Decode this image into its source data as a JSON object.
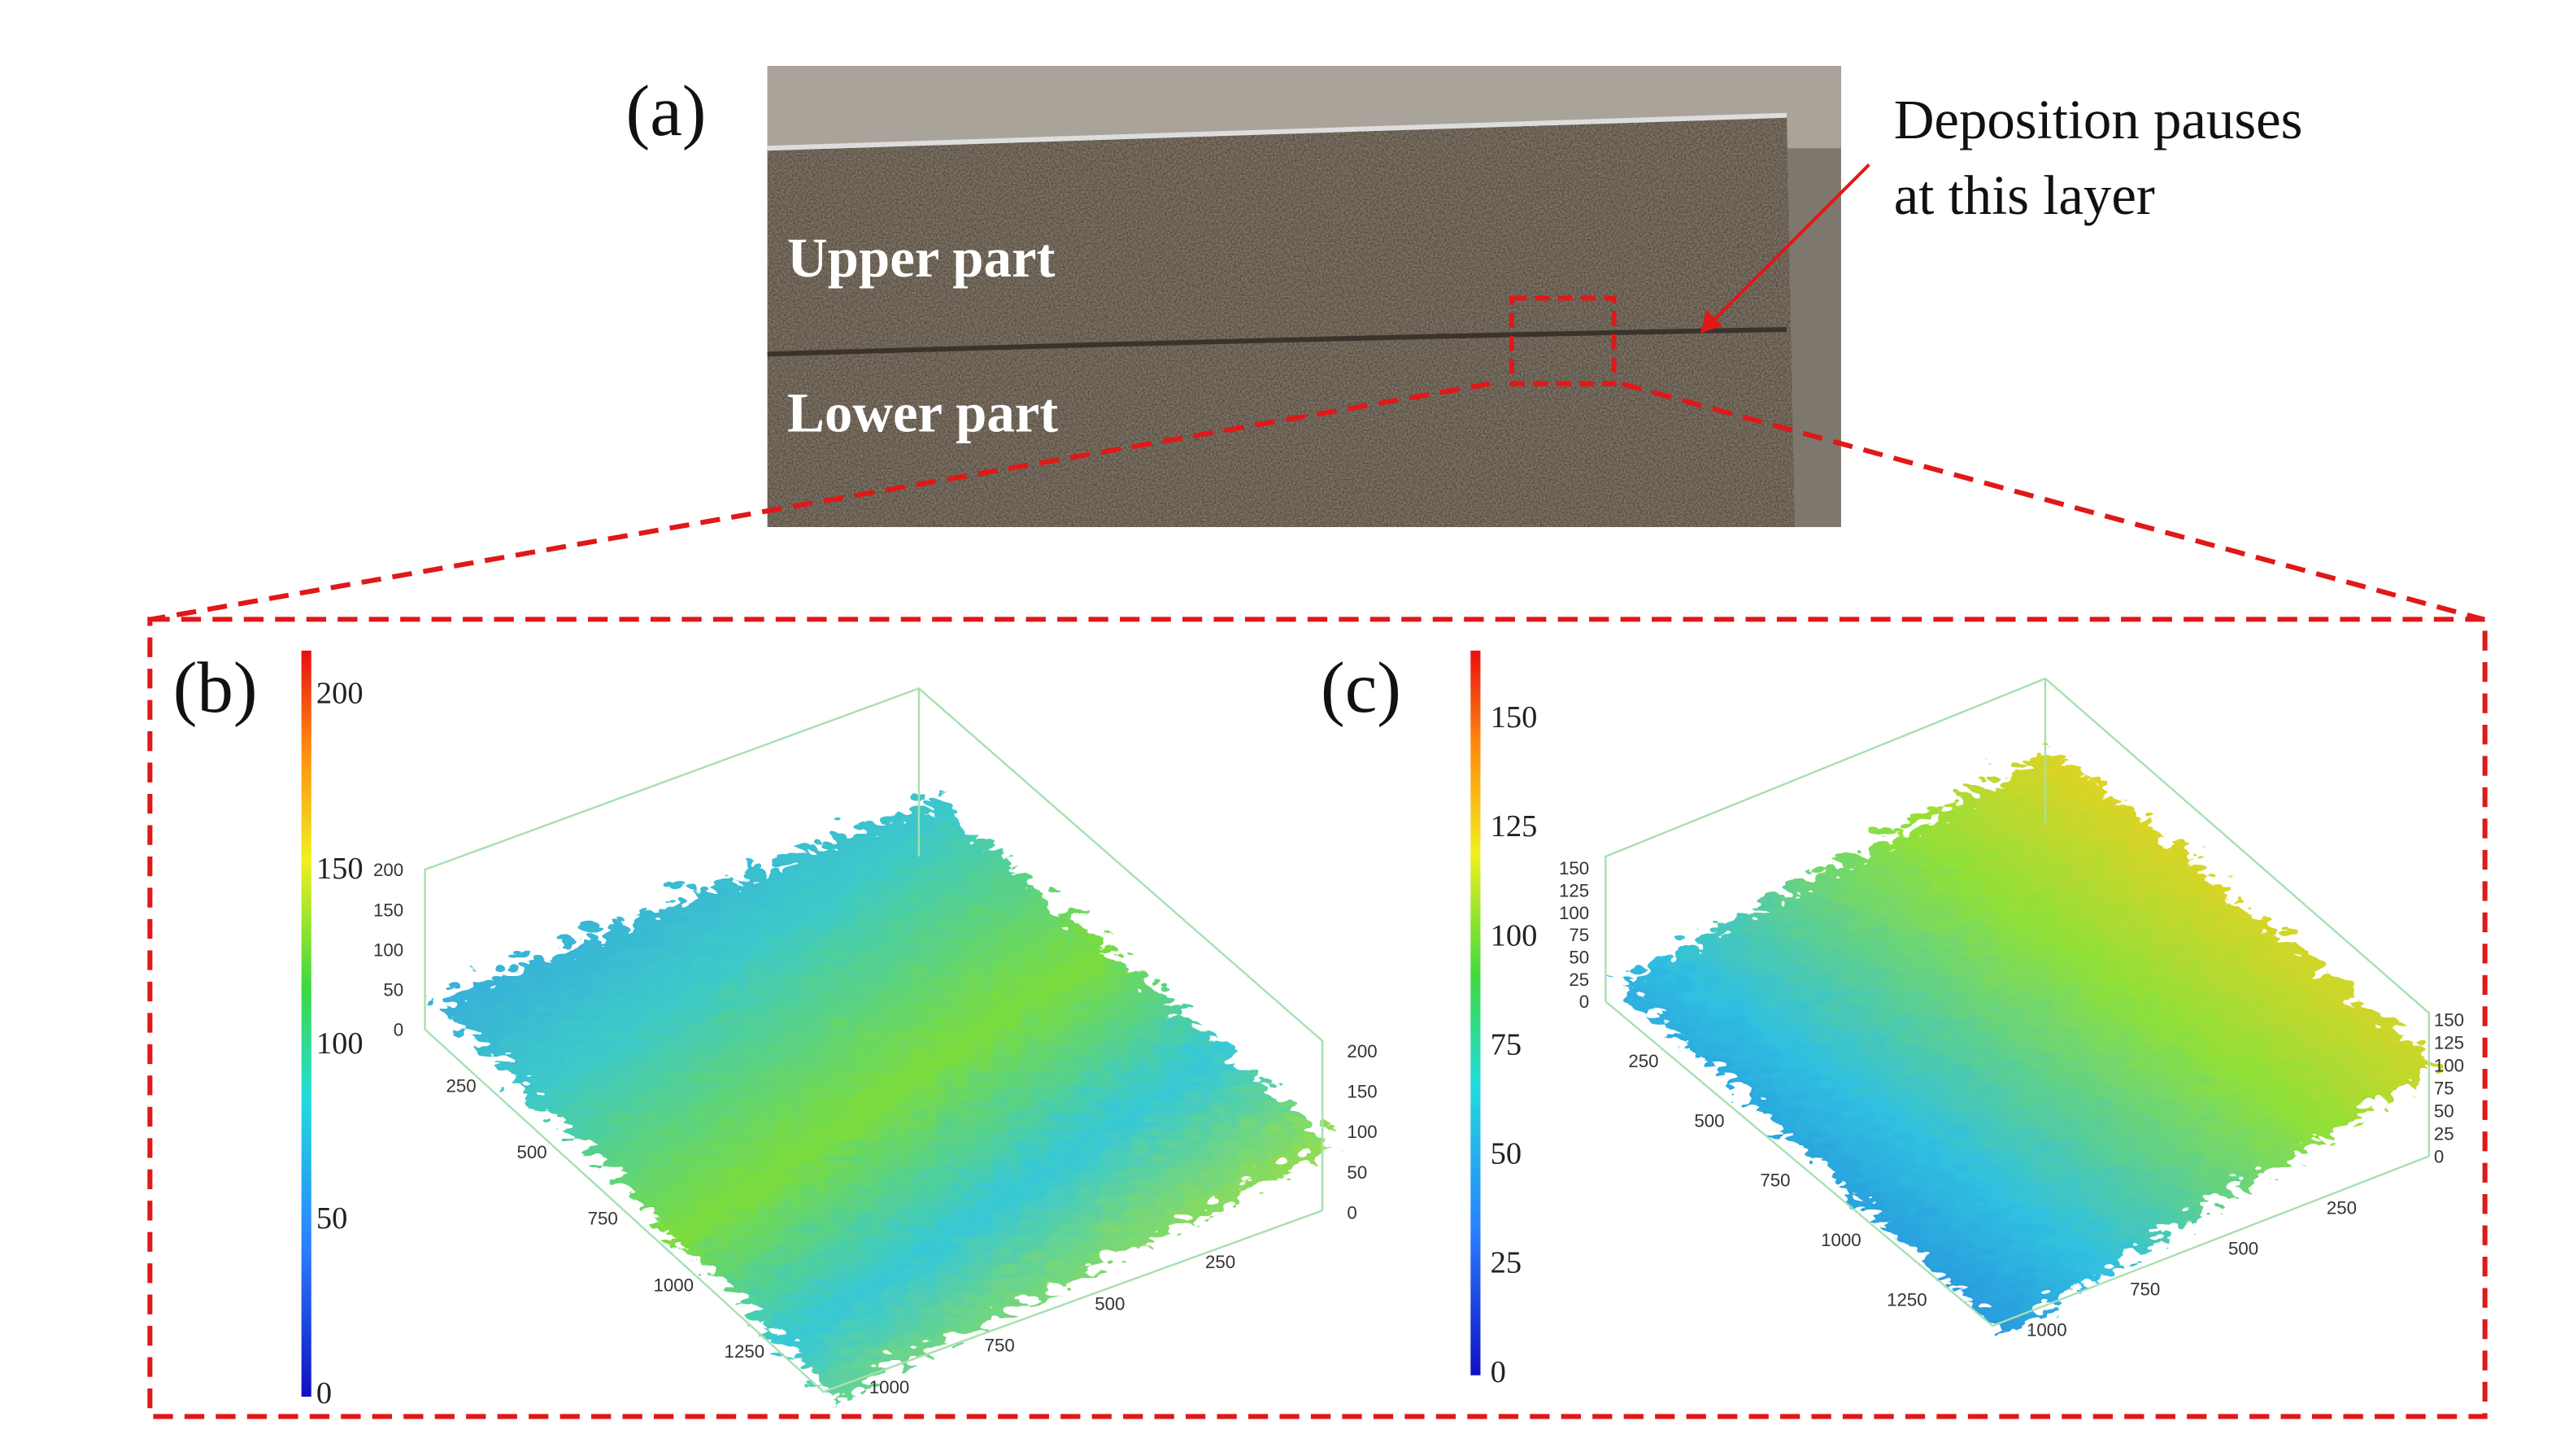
{
  "photo": {
    "label": "(a)",
    "regions": [
      "Upper part",
      "Lower part"
    ],
    "annotation": [
      "Deposition pauses",
      "at this layer"
    ]
  },
  "plots": [
    {
      "label": "(b)",
      "colorbar_ticks": [
        0,
        50,
        100,
        150,
        200
      ],
      "z_ticks": [
        0,
        50,
        100,
        150,
        200
      ],
      "x_ticks": [
        250,
        500,
        750,
        1000,
        1250
      ],
      "y_ticks": [
        250,
        500,
        750,
        1000
      ]
    },
    {
      "label": "(c)",
      "colorbar_ticks": [
        0,
        25,
        50,
        75,
        100,
        125,
        150
      ],
      "z_ticks": [
        0,
        25,
        50,
        75,
        100,
        125,
        150
      ],
      "x_ticks": [
        250,
        500,
        750,
        1000,
        1250
      ],
      "y_ticks": [
        250,
        500,
        750,
        1000
      ]
    }
  ]
}
